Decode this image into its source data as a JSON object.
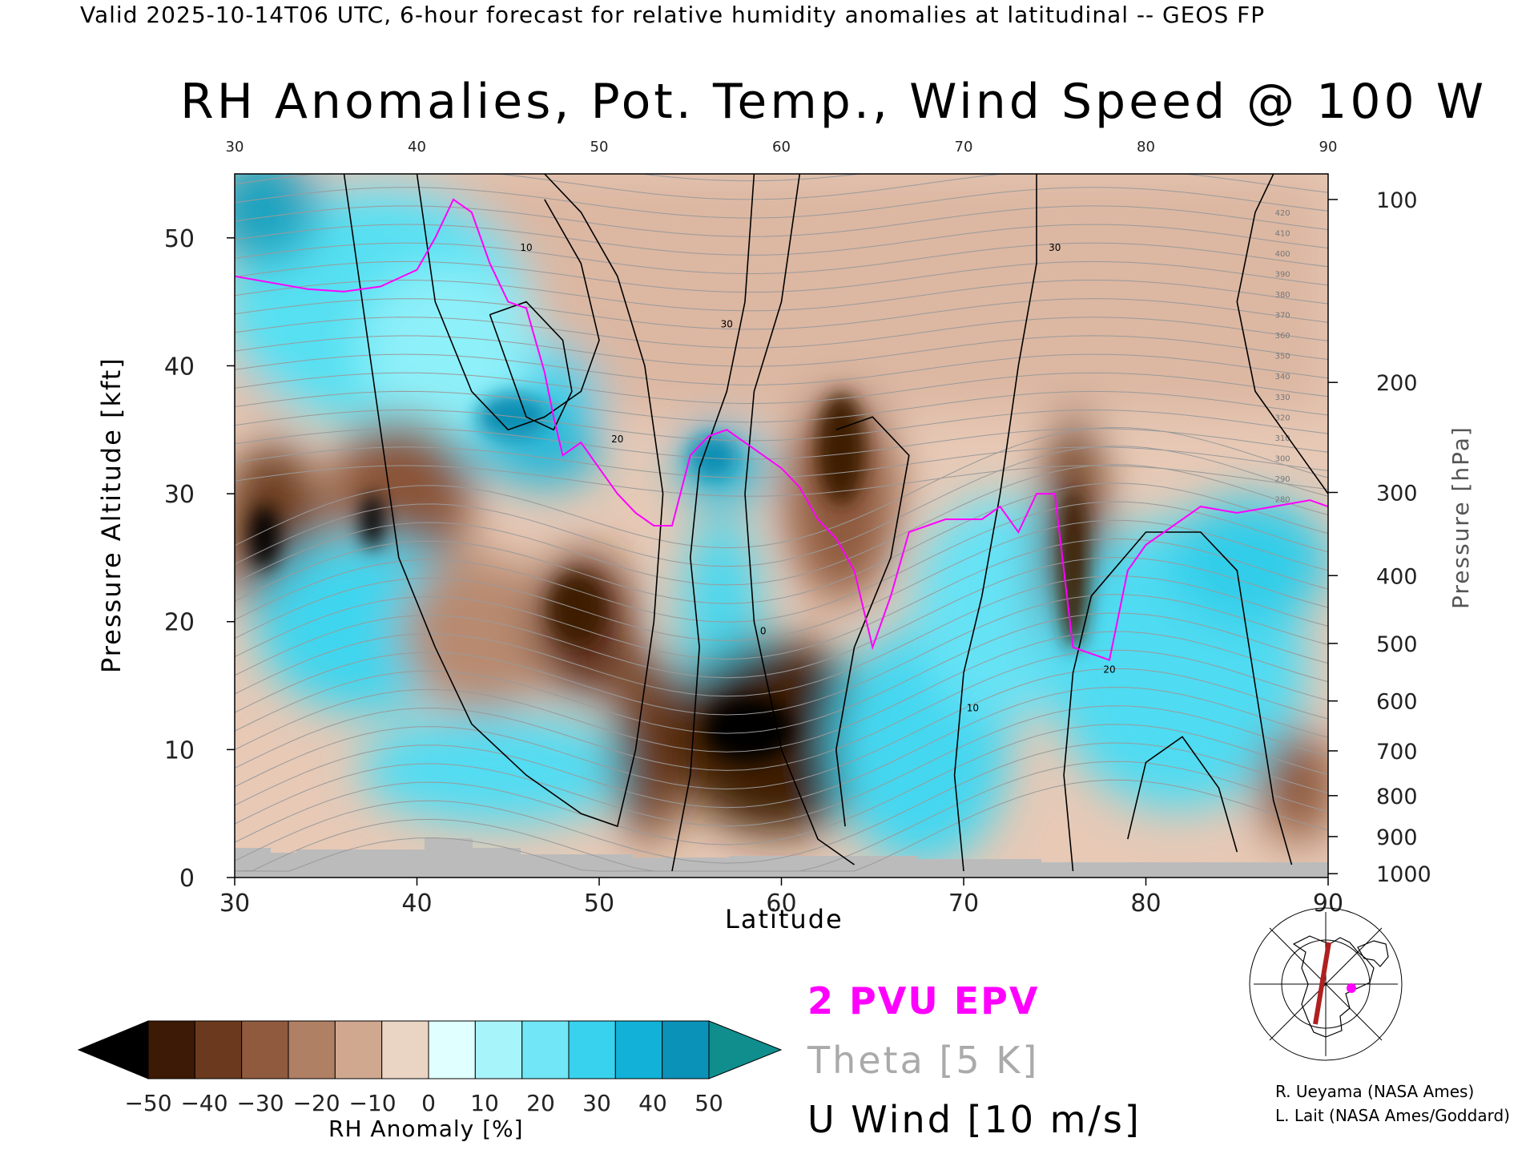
{
  "header": {
    "valid_text": "Valid 2025-10-14T06 UTC, 6-hour forecast for relative humidity anomalies at latitudinal -- GEOS FP",
    "title": "RH Anomalies, Pot. Temp., Wind Speed @ 100 W"
  },
  "colors": {
    "dry_strong": "#000000",
    "dry": "#6b3a1e",
    "neutral_dry": "#e8d0c0",
    "neutral_wet": "#d8ffff",
    "wet": "#3ad6ee",
    "wet_strong": "#008a8a",
    "epv": "#ff00ff",
    "theta": "#aaaaaa",
    "wind": "#000000",
    "terrain": "#bbbbbb",
    "cross_section_line": "#b02020"
  },
  "chart_data": {
    "type": "heatmap",
    "xlabel": "Latitude",
    "ylabel": "Pressure Altitude [kft]",
    "y2label": "Pressure [hPa]",
    "xlim": [
      30,
      90
    ],
    "ylim": [
      0,
      55
    ],
    "x_ticks": [
      "30",
      "40",
      "50",
      "60",
      "70",
      "80",
      "90"
    ],
    "y_ticks": [
      "0",
      "10",
      "20",
      "30",
      "40",
      "50"
    ],
    "pressure_ticks": [
      {
        "label": "100",
        "kft": 53.0
      },
      {
        "label": "200",
        "kft": 38.7
      },
      {
        "label": "300",
        "kft": 30.1
      },
      {
        "label": "400",
        "kft": 23.6
      },
      {
        "label": "500",
        "kft": 18.3
      },
      {
        "label": "600",
        "kft": 13.8
      },
      {
        "label": "700",
        "kft": 9.9
      },
      {
        "label": "800",
        "kft": 6.4
      },
      {
        "label": "900",
        "kft": 3.2
      },
      {
        "label": "1000",
        "kft": 0.3
      }
    ],
    "epv_2pvu_kft": [
      [
        30,
        47
      ],
      [
        32,
        46.5
      ],
      [
        34,
        46
      ],
      [
        36,
        45.8
      ],
      [
        38,
        46.2
      ],
      [
        40,
        47.5
      ],
      [
        41,
        50
      ],
      [
        42,
        53
      ],
      [
        43,
        52
      ],
      [
        44,
        48
      ],
      [
        45,
        45
      ],
      [
        46,
        44.5
      ],
      [
        47,
        39.5
      ],
      [
        47.5,
        36
      ],
      [
        48,
        33
      ],
      [
        49,
        34
      ],
      [
        50,
        32
      ],
      [
        51,
        30
      ],
      [
        52,
        28.5
      ],
      [
        53,
        27.5
      ],
      [
        54,
        27.5
      ],
      [
        55,
        33
      ],
      [
        56,
        34.5
      ],
      [
        57,
        35
      ],
      [
        58,
        34
      ],
      [
        60,
        32
      ],
      [
        61,
        30.5
      ],
      [
        62,
        28
      ],
      [
        63,
        26.5
      ],
      [
        64,
        24
      ],
      [
        65,
        18
      ],
      [
        66,
        22
      ],
      [
        67,
        27
      ],
      [
        69,
        28
      ],
      [
        71,
        28
      ],
      [
        72,
        29
      ],
      [
        73,
        27
      ],
      [
        74,
        30
      ],
      [
        75,
        30
      ],
      [
        76,
        18
      ],
      [
        78,
        17
      ],
      [
        79,
        24
      ],
      [
        80,
        26
      ],
      [
        81,
        27
      ],
      [
        83,
        29
      ],
      [
        85,
        28.5
      ],
      [
        87,
        29
      ],
      [
        89,
        29.5
      ],
      [
        90,
        29
      ]
    ],
    "rh_colorbar": {
      "label": "RH Anomaly [%]",
      "ticks": [
        "−50",
        "−40",
        "−30",
        "−20",
        "−10",
        "0",
        "10",
        "20",
        "30",
        "40",
        "50"
      ],
      "colors": [
        "#000000",
        "#3d1a05",
        "#6b3a1e",
        "#8f5a3d",
        "#b08064",
        "#d0a890",
        "#ead4c4",
        "#e0ffff",
        "#a8f4fb",
        "#70e6f6",
        "#38d2ee",
        "#12b2d8",
        "#0a92b8",
        "#108e8e"
      ]
    },
    "wind_contour_labels": [
      "10",
      "20",
      "30",
      "0"
    ],
    "theta_contour_labels": [
      "420",
      "410",
      "400",
      "390",
      "380",
      "370",
      "360",
      "350",
      "340",
      "330",
      "320",
      "310",
      "300",
      "290",
      "280"
    ]
  },
  "legend": {
    "epv": "2 PVU EPV",
    "theta": "Theta [5 K]",
    "wind": "U Wind [10 m/s]"
  },
  "credits": {
    "line1": "R. Ueyama (NASA Ames)",
    "line2": "L. Lait (NASA Ames/Goddard)"
  }
}
